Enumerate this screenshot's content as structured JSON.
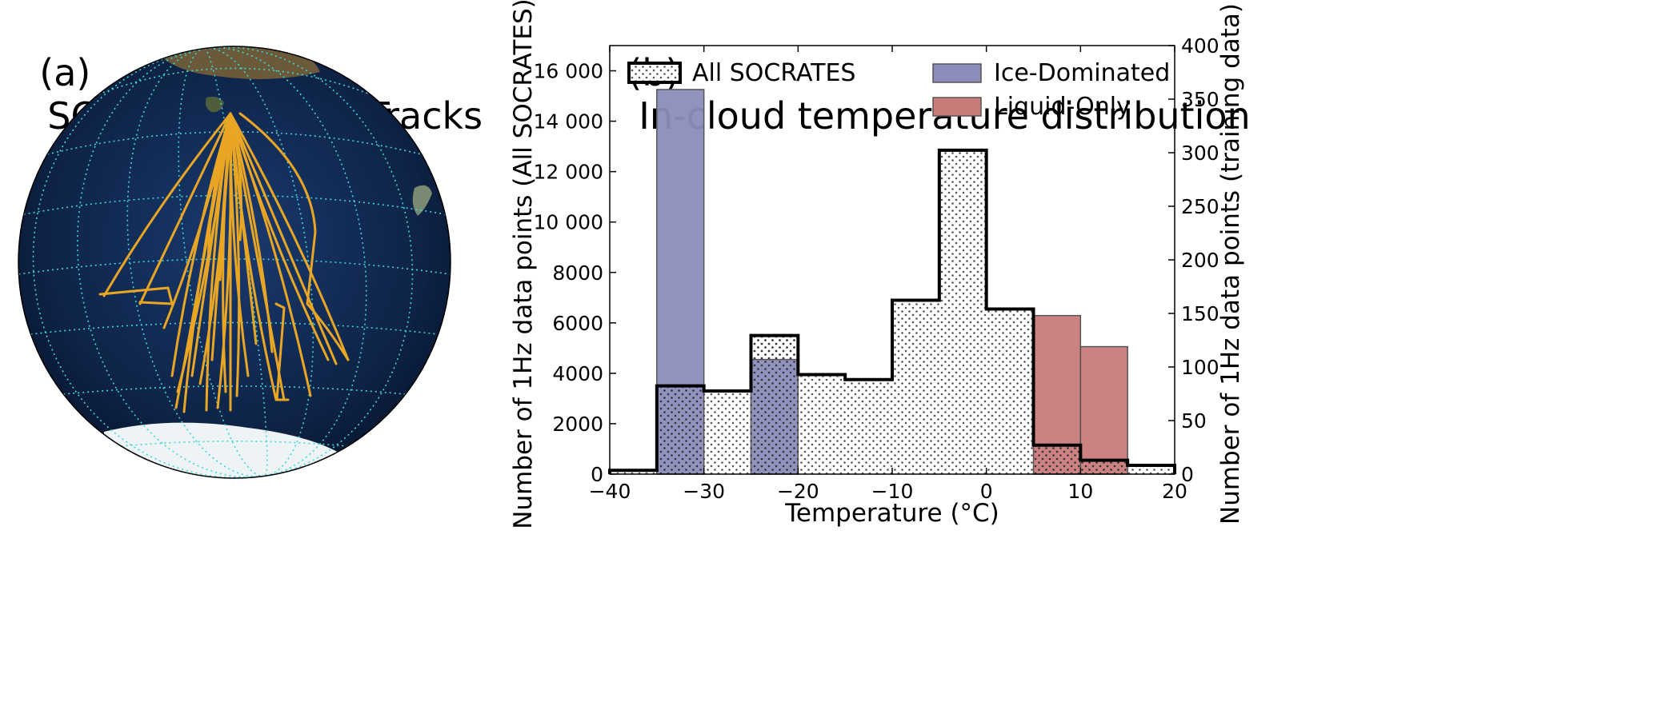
{
  "panel_a": {
    "label": "(a)",
    "title": "SOCRATES Flight Tracks",
    "track_color": "#e8a624",
    "graticule_color": "#3fd6d6",
    "ocean_color": "#0e2448"
  },
  "panel_b": {
    "label": "(b)",
    "title": "In-cloud temperature distribution"
  },
  "chart_data": {
    "type": "bar",
    "title": "In-cloud temperature distribution",
    "xlabel": "Temperature (°C)",
    "ylabel_left": "Number of 1Hz data points (All SOCRATES)",
    "ylabel_right": "Number of 1Hz data points (training data)",
    "xlim": [
      -40,
      20
    ],
    "ylim_left": [
      0,
      17000
    ],
    "ylim_right": [
      0,
      400
    ],
    "x_ticks": [
      "−40",
      "−30",
      "−20",
      "−10",
      "0",
      "10",
      "20"
    ],
    "y_left_ticks": [
      "0",
      "2000",
      "4000",
      "6000",
      "8000",
      "10 000",
      "12 000",
      "14 000",
      "16 000"
    ],
    "y_right_ticks": [
      "0",
      "50",
      "100",
      "150",
      "200",
      "250",
      "300",
      "350",
      "400"
    ],
    "bin_edges": [
      -40,
      -35,
      -30,
      -25,
      -20,
      -15,
      -10,
      -5,
      0,
      5,
      10,
      15,
      20
    ],
    "legend": {
      "all_socrates": "All SOCRATES",
      "ice_dominated": "Ice-Dominated",
      "liquid_only": "Liquid-Only"
    },
    "series": [
      {
        "name": "All SOCRATES",
        "axis": "left",
        "style": "step-hatched",
        "values": [
          150,
          3500,
          3300,
          5500,
          3950,
          3750,
          6900,
          12850,
          6550,
          1150,
          550,
          350
        ]
      },
      {
        "name": "Ice-Dominated",
        "axis": "right",
        "color": "#8c8cba",
        "values": [
          0,
          359,
          0,
          107,
          0,
          0,
          0,
          0,
          0,
          0,
          0,
          0
        ]
      },
      {
        "name": "Liquid-Only",
        "axis": "right",
        "color": "#c97b79",
        "values": [
          0,
          0,
          0,
          0,
          0,
          0,
          0,
          0,
          0,
          148,
          119,
          0
        ]
      }
    ]
  }
}
